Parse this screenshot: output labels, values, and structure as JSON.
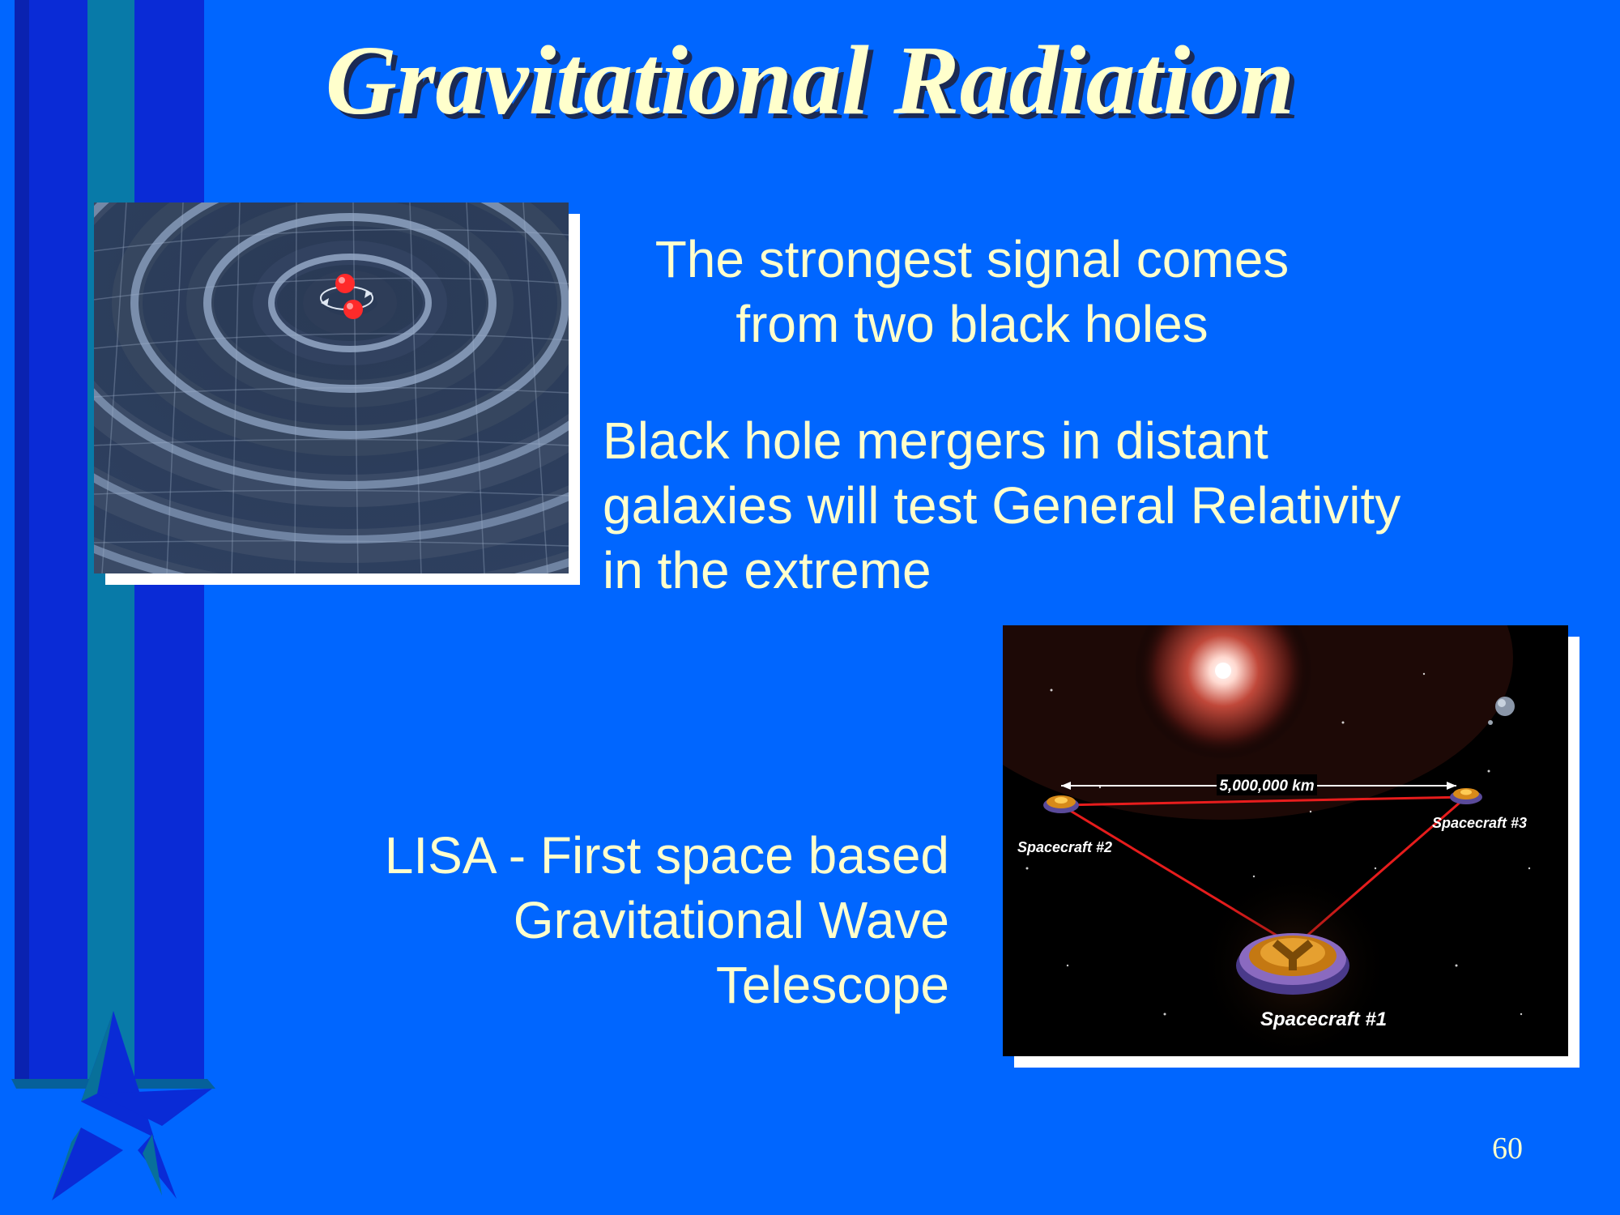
{
  "slide": {
    "title": "Gravitational Radiation",
    "text_1_line1": "The strongest signal comes",
    "text_1_line2": "from two black holes",
    "text_2_line1": "Black hole mergers in distant",
    "text_2_line2": "galaxies will test General Relativity",
    "text_2_line3": "in the extreme",
    "text_3_line1": "LISA - First space based",
    "text_3_line2": "Gravitational Wave",
    "text_3_line3": "Telescope",
    "page_number": "60"
  },
  "lisa_image": {
    "distance_label": "5,000,000 km",
    "spacecraft_1": "Spacecraft #1",
    "spacecraft_2": "Spacecraft #2",
    "spacecraft_3": "Spacecraft #3"
  },
  "colors": {
    "background": "#0066ff",
    "text": "#ffffcc",
    "stripe_dark": "#0a2bd6",
    "stripe_teal": "#086f9a"
  }
}
